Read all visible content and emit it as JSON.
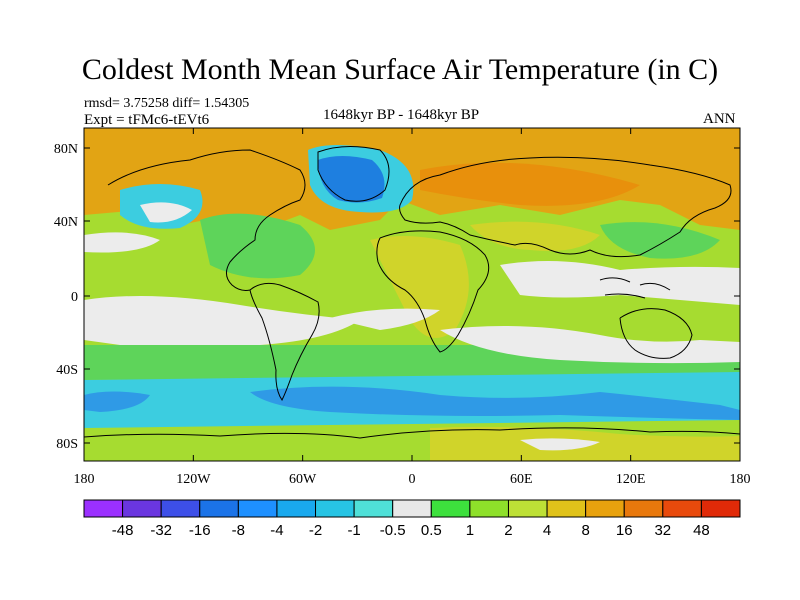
{
  "title": "Coldest Month Mean Surface Air Temperature (in C)",
  "stats": "rmsd= 3.75258 diff= 1.54305",
  "experiment": "Expt = tFMc6-tEVt6",
  "period": "1648kyr BP - 1648kyr BP",
  "season": "ANN",
  "map": {
    "lat_ticks": [
      "80N",
      "40N",
      "0",
      "40S",
      "80S"
    ],
    "lon_ticks": [
      "180",
      "120W",
      "60W",
      "0",
      "60E",
      "120E",
      "180"
    ]
  },
  "colorbar": {
    "labels": [
      "-48",
      "-32",
      "-16",
      "-8",
      "-4",
      "-2",
      "-1",
      "-0.5",
      "0.5",
      "1",
      "2",
      "4",
      "8",
      "16",
      "32",
      "48"
    ],
    "colors": [
      "#9b30ff",
      "#6a36e0",
      "#3d4fe8",
      "#1b73e8",
      "#1e90ff",
      "#19a9ee",
      "#27c4e4",
      "#4fe0d8",
      "#e8e8e8",
      "#3de03d",
      "#8ee02a",
      "#bde036",
      "#e0c21a",
      "#e8a20e",
      "#e8780c",
      "#e84a0c",
      "#e02a08"
    ]
  },
  "palette": {
    "green": "#5ed45a",
    "lime": "#a6dc30",
    "yellow": "#d0d42a",
    "orange": "#e2a414",
    "cyan": "#3ccde0",
    "blue": "#2f9ae6",
    "deepblue": "#1e7fe0",
    "white": "#ececec"
  }
}
